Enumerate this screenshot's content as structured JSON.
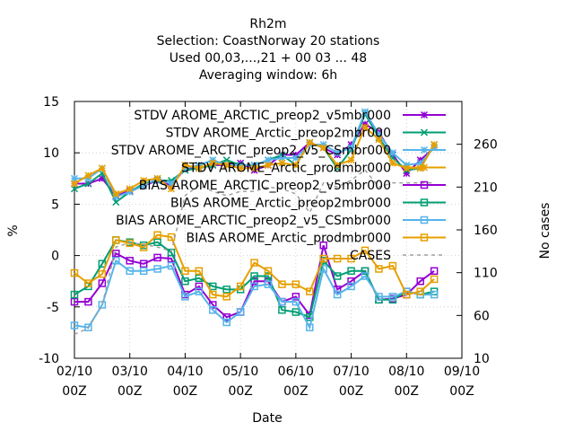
{
  "chart_data": {
    "type": "line",
    "title_lines": [
      "Rh2m",
      "Selection: CoastNorway     20 stations",
      "Used  00,03,...,21  + 00 03 ... 48",
      "Averaging window:  6h"
    ],
    "xlabel": "Date",
    "ylabel": "%",
    "y2label": "No cases",
    "xticks": [
      "02/10\n00Z",
      "03/10\n00Z",
      "04/10\n00Z",
      "05/10\n00Z",
      "06/10\n00Z",
      "07/10\n00Z",
      "08/10\n00Z",
      "09/10\n00Z"
    ],
    "ylim": [
      -10,
      15
    ],
    "yticks": [
      -10,
      -5,
      0,
      5,
      10,
      15
    ],
    "y2lim": [
      10,
      310
    ],
    "y2ticks": [
      10,
      60,
      110,
      160,
      210,
      260
    ],
    "xlim": [
      0,
      7
    ],
    "grid": true,
    "legend_position": "top-right",
    "x": [
      0,
      0.25,
      0.5,
      0.75,
      1,
      1.25,
      1.5,
      1.75,
      2,
      2.25,
      2.5,
      2.75,
      3,
      3.25,
      3.5,
      3.75,
      4,
      4.25,
      4.5,
      4.75,
      5,
      5.25,
      5.5,
      5.75,
      6,
      6.25,
      6.5
    ],
    "series": [
      {
        "name": "STDV AROME_ARCTIC_preop2_v5mbr000",
        "color": "#9400d3",
        "marker": "star",
        "dash": false,
        "values": [
          7.0,
          7.0,
          7.5,
          5.8,
          6.3,
          6.8,
          7.3,
          6.8,
          8.5,
          8.5,
          8.8,
          8.8,
          9.0,
          8.3,
          8.8,
          9.8,
          9.8,
          11.0,
          10.5,
          9.8,
          10.8,
          12.8,
          12.0,
          9.8,
          8.0,
          9.3,
          10.5
        ]
      },
      {
        "name": "STDV AROME_Arctic_preop2mbr000",
        "color": "#009e73",
        "marker": "x",
        "dash": false,
        "values": [
          6.5,
          7.0,
          8.0,
          5.2,
          6.2,
          7.0,
          7.3,
          7.3,
          8.3,
          8.5,
          8.8,
          9.3,
          8.8,
          8.8,
          9.3,
          9.8,
          8.8,
          11.0,
          10.5,
          8.5,
          10.3,
          13.8,
          11.5,
          9.5,
          8.3,
          8.5,
          10.8
        ]
      },
      {
        "name": "STDV AROME_ARCTIC_preop2_v5_CSmbr000",
        "color": "#56b4e9",
        "marker": "star",
        "dash": false,
        "values": [
          7.5,
          7.5,
          8.5,
          5.7,
          6.2,
          6.8,
          7.5,
          7.0,
          8.5,
          8.8,
          9.3,
          8.8,
          8.8,
          8.8,
          9.3,
          9.5,
          9.5,
          10.8,
          10.8,
          10.0,
          10.5,
          14.0,
          11.8,
          10.0,
          8.8,
          9.0,
          10.5
        ]
      },
      {
        "name": "STDV AROME_Arctic_prodmbr000",
        "color": "#e69f00",
        "marker": "star",
        "dash": false,
        "values": [
          7.0,
          7.8,
          8.5,
          6.0,
          6.5,
          7.3,
          7.5,
          6.5,
          8.8,
          8.5,
          9.0,
          8.8,
          8.5,
          8.5,
          8.8,
          9.0,
          8.8,
          11.0,
          10.5,
          8.8,
          9.3,
          12.5,
          11.3,
          9.0,
          8.5,
          8.5,
          10.8
        ]
      },
      {
        "name": "BIAS AROME_ARCTIC_preop2_v5mbr000",
        "color": "#9400d3",
        "marker": "square",
        "dash": false,
        "values": [
          -4.5,
          -4.5,
          -2.7,
          0.2,
          -0.5,
          -0.8,
          -0.2,
          -0.3,
          -3.8,
          -3.0,
          -4.8,
          -6.0,
          -5.5,
          -2.5,
          -2.5,
          -4.5,
          -4.0,
          -5.8,
          1.0,
          -3.3,
          -2.5,
          -1.5,
          -4.3,
          -4.2,
          -3.8,
          -2.5,
          -1.5
        ]
      },
      {
        "name": "BIAS AROME_Arctic_preop2mbr000",
        "color": "#009e73",
        "marker": "square",
        "dash": false,
        "values": [
          -3.8,
          -3.0,
          -0.8,
          1.5,
          1.3,
          1.0,
          1.3,
          0.3,
          -2.5,
          -2.2,
          -3.0,
          -3.3,
          -3.3,
          -2.0,
          -2.0,
          -5.3,
          -5.5,
          -6.0,
          -0.5,
          -2.0,
          -1.5,
          -1.5,
          -4.3,
          -4.3,
          -3.5,
          -3.8,
          -3.5
        ]
      },
      {
        "name": "BIAS AROME_ARCTIC_preop2_v5_CSmbr000",
        "color": "#56b4e9",
        "marker": "square",
        "dash": false,
        "values": [
          -6.8,
          -7.0,
          -4.8,
          -0.5,
          -1.5,
          -1.5,
          -1.3,
          -1.0,
          -4.0,
          -3.5,
          -5.3,
          -6.5,
          -5.5,
          -3.0,
          -2.8,
          -4.5,
          -4.5,
          -7.0,
          -1.3,
          -3.8,
          -3.0,
          -2.0,
          -4.0,
          -4.0,
          -3.5,
          -3.8,
          -3.8
        ]
      },
      {
        "name": "BIAS AROME_Arctic_prodmbr000",
        "color": "#e69f00",
        "marker": "square",
        "dash": false,
        "values": [
          -1.7,
          -2.7,
          -1.8,
          1.5,
          1.2,
          0.8,
          2.0,
          1.8,
          -1.5,
          -1.5,
          -3.8,
          -4.0,
          -3.0,
          -0.7,
          -1.5,
          -2.8,
          -2.8,
          -3.5,
          -0.3,
          -0.3,
          -0.3,
          0.5,
          -1.3,
          -1.0,
          -3.8,
          -3.5,
          -2.3
        ]
      },
      {
        "name": "CASES",
        "color": "#a0a0a0",
        "marker": "none",
        "dash": true,
        "axis": "y2",
        "values": [
          38,
          45,
          72,
          140,
          145,
          143,
          140,
          135,
          200,
          212,
          205,
          200,
          205,
          205,
          210,
          208,
          202,
          180,
          215,
          210,
          218,
          230,
          210,
          215,
          215,
          215,
          215
        ]
      }
    ]
  }
}
